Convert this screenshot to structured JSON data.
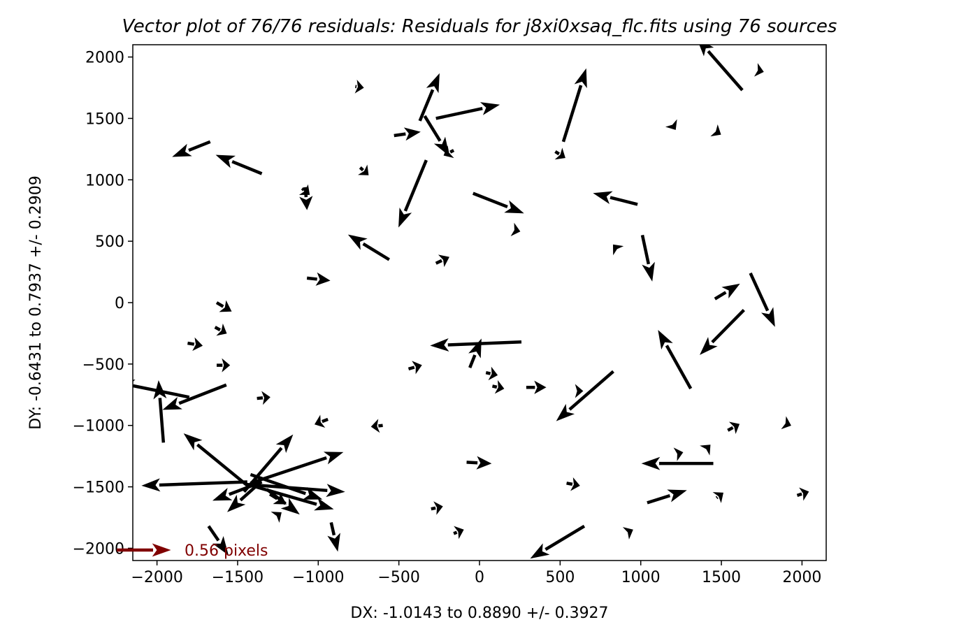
{
  "chart_data": {
    "type": "quiver",
    "title": "Vector plot of 76/76 residuals$:$ Residuals for j8xi0xsaq_flc.fits using 76 sources",
    "xlabel": "DX: -1.0143 to 0.8890 +/- 0.3927",
    "ylabel": "DY: -0.6431 to 0.7937 +/- 0.2909",
    "xlim": [
      -2150,
      2150
    ],
    "ylim": [
      -2100,
      2100
    ],
    "xticks": [
      -2000,
      -1500,
      -1000,
      -500,
      0,
      500,
      1000,
      1500,
      2000
    ],
    "yticks": [
      -2000,
      -1500,
      -1000,
      -500,
      0,
      500,
      1000,
      1500,
      2000
    ],
    "arrow_color": "#000000",
    "key": {
      "label": "0.56 pixels",
      "color": "#800000"
    },
    "vectors": [
      {
        "x": 1630,
        "y": 1730,
        "dx": -280,
        "dy": 420
      },
      {
        "x": 1730,
        "y": 1890,
        "dx": 30,
        "dy": -10
      },
      {
        "x": -770,
        "y": 1760,
        "dx": 50,
        "dy": -10
      },
      {
        "x": -370,
        "y": 1480,
        "dx": 120,
        "dy": 380
      },
      {
        "x": -270,
        "y": 1500,
        "dx": 390,
        "dy": 110
      },
      {
        "x": 520,
        "y": 1310,
        "dx": 140,
        "dy": 590
      },
      {
        "x": -530,
        "y": 1360,
        "dx": 160,
        "dy": 30
      },
      {
        "x": -340,
        "y": 1520,
        "dx": 150,
        "dy": -320
      },
      {
        "x": -1670,
        "y": 1310,
        "dx": -230,
        "dy": -120
      },
      {
        "x": -1350,
        "y": 1050,
        "dx": -280,
        "dy": 150
      },
      {
        "x": -740,
        "y": 1100,
        "dx": 50,
        "dy": -60
      },
      {
        "x": -160,
        "y": 1240,
        "dx": -60,
        "dy": -40
      },
      {
        "x": 470,
        "y": 1230,
        "dx": 60,
        "dy": -50
      },
      {
        "x": 1200,
        "y": 1440,
        "dx": 15,
        "dy": -30
      },
      {
        "x": 1470,
        "y": 1390,
        "dx": 25,
        "dy": -20
      },
      {
        "x": -330,
        "y": 1160,
        "dx": -170,
        "dy": -540
      },
      {
        "x": -1100,
        "y": 930,
        "dx": 45,
        "dy": -50
      },
      {
        "x": -1080,
        "y": 940,
        "dx": 10,
        "dy": -180
      },
      {
        "x": -40,
        "y": 890,
        "dx": 310,
        "dy": -160
      },
      {
        "x": 980,
        "y": 800,
        "dx": -270,
        "dy": 90
      },
      {
        "x": 220,
        "y": 590,
        "dx": 30,
        "dy": -10
      },
      {
        "x": -560,
        "y": 350,
        "dx": -250,
        "dy": 200
      },
      {
        "x": -270,
        "y": 320,
        "dx": 80,
        "dy": 50
      },
      {
        "x": 850,
        "y": 440,
        "dx": -20,
        "dy": 30
      },
      {
        "x": 1010,
        "y": 550,
        "dx": 60,
        "dy": -370
      },
      {
        "x": -1070,
        "y": 200,
        "dx": 140,
        "dy": -20
      },
      {
        "x": 1460,
        "y": 30,
        "dx": 150,
        "dy": 120
      },
      {
        "x": 1680,
        "y": 240,
        "dx": 150,
        "dy": -430
      },
      {
        "x": -1630,
        "y": 0,
        "dx": 90,
        "dy": -70
      },
      {
        "x": -1640,
        "y": -200,
        "dx": 70,
        "dy": -50
      },
      {
        "x": -1810,
        "y": -330,
        "dx": 90,
        "dy": -20
      },
      {
        "x": -1630,
        "y": -510,
        "dx": 80,
        "dy": 0
      },
      {
        "x": 260,
        "y": -320,
        "dx": -560,
        "dy": -30
      },
      {
        "x": -60,
        "y": -530,
        "dx": 70,
        "dy": 230
      },
      {
        "x": -440,
        "y": -540,
        "dx": 80,
        "dy": 30
      },
      {
        "x": 1640,
        "y": -60,
        "dx": -270,
        "dy": -360
      },
      {
        "x": 1310,
        "y": -700,
        "dx": -200,
        "dy": 470
      },
      {
        "x": 40,
        "y": -570,
        "dx": 70,
        "dy": -20
      },
      {
        "x": 80,
        "y": -680,
        "dx": 70,
        "dy": -20
      },
      {
        "x": 290,
        "y": -690,
        "dx": 120,
        "dy": 0
      },
      {
        "x": 600,
        "y": -720,
        "dx": 40,
        "dy": 0
      },
      {
        "x": 830,
        "y": -560,
        "dx": -350,
        "dy": -400
      },
      {
        "x": -1800,
        "y": -770,
        "dx": -450,
        "dy": 120
      },
      {
        "x": -1960,
        "y": -1140,
        "dx": -30,
        "dy": 500
      },
      {
        "x": -1570,
        "y": -670,
        "dx": -390,
        "dy": -200
      },
      {
        "x": -1380,
        "y": -780,
        "dx": 80,
        "dy": 10
      },
      {
        "x": -940,
        "y": -950,
        "dx": -80,
        "dy": -40
      },
      {
        "x": -600,
        "y": -1000,
        "dx": -70,
        "dy": -10
      },
      {
        "x": -1430,
        "y": -1500,
        "dx": -400,
        "dy": 430
      },
      {
        "x": -1440,
        "y": -1460,
        "dx": -650,
        "dy": -30
      },
      {
        "x": -1450,
        "y": -1480,
        "dx": 610,
        "dy": -60
      },
      {
        "x": -1440,
        "y": -1480,
        "dx": 530,
        "dy": -200
      },
      {
        "x": -1420,
        "y": -1470,
        "dx": 570,
        "dy": 250
      },
      {
        "x": -1390,
        "y": -1500,
        "dx": -170,
        "dy": -200
      },
      {
        "x": -1350,
        "y": -1460,
        "dx": -300,
        "dy": -150
      },
      {
        "x": -1460,
        "y": -1540,
        "dx": 300,
        "dy": 460
      },
      {
        "x": -1420,
        "y": -1400,
        "dx": 440,
        "dy": -200
      },
      {
        "x": -1260,
        "y": -1740,
        "dx": 30,
        "dy": 30
      },
      {
        "x": -1300,
        "y": -1560,
        "dx": 100,
        "dy": -80
      },
      {
        "x": -1320,
        "y": -1520,
        "dx": 200,
        "dy": -200
      },
      {
        "x": -1680,
        "y": -1820,
        "dx": 120,
        "dy": -230
      },
      {
        "x": -920,
        "y": -1790,
        "dx": 40,
        "dy": -230
      },
      {
        "x": -80,
        "y": -1300,
        "dx": 150,
        "dy": -10
      },
      {
        "x": -300,
        "y": -1680,
        "dx": 70,
        "dy": 20
      },
      {
        "x": -160,
        "y": -1880,
        "dx": 60,
        "dy": 30
      },
      {
        "x": 540,
        "y": -1470,
        "dx": 80,
        "dy": -20
      },
      {
        "x": 650,
        "y": -1820,
        "dx": -330,
        "dy": -260
      },
      {
        "x": 920,
        "y": -1870,
        "dx": 30,
        "dy": 20
      },
      {
        "x": 1450,
        "y": -1310,
        "dx": -440,
        "dy": 0
      },
      {
        "x": 1040,
        "y": -1630,
        "dx": 240,
        "dy": 100
      },
      {
        "x": 1230,
        "y": -1230,
        "dx": 30,
        "dy": 10
      },
      {
        "x": 1400,
        "y": -1200,
        "dx": 30,
        "dy": 40
      },
      {
        "x": 1470,
        "y": -1590,
        "dx": 40,
        "dy": 40
      },
      {
        "x": 1540,
        "y": -1040,
        "dx": 70,
        "dy": 50
      },
      {
        "x": 1910,
        "y": -990,
        "dx": 20,
        "dy": -10
      },
      {
        "x": 1970,
        "y": -1570,
        "dx": 70,
        "dy": 30
      }
    ]
  }
}
